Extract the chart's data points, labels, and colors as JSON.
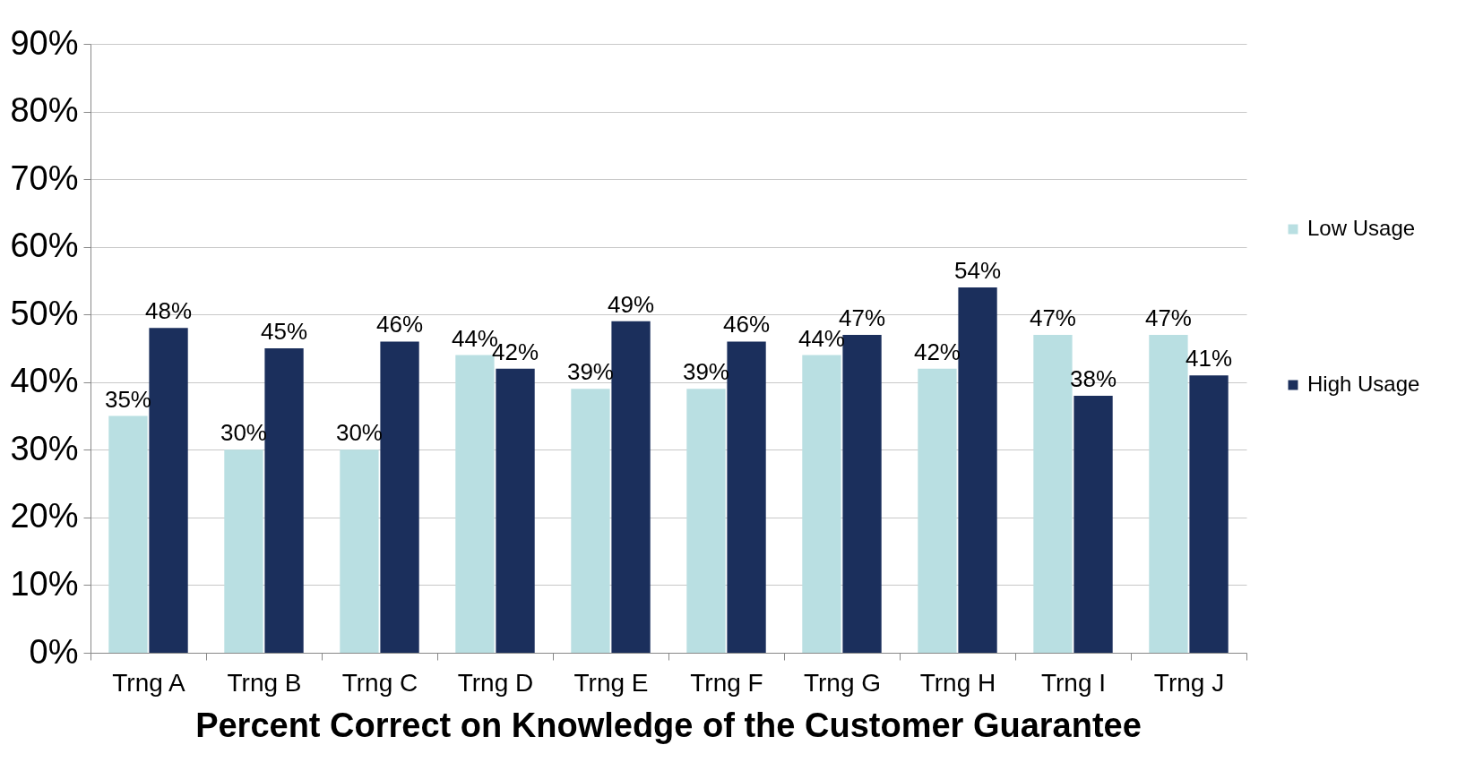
{
  "chart_data": {
    "type": "bar",
    "title": "Percent Correct on Knowledge of the Customer Guarantee",
    "categories": [
      "Trng A",
      "Trng B",
      "Trng C",
      "Trng D",
      "Trng E",
      "Trng F",
      "Trng G",
      "Trng H",
      "Trng I",
      "Trng J"
    ],
    "series": [
      {
        "name": "Low Usage",
        "color": "#b9dfe2",
        "values": [
          35,
          30,
          30,
          44,
          39,
          39,
          44,
          42,
          47,
          47
        ],
        "value_labels": [
          "35%",
          "30%",
          "30%",
          "44%",
          "39%",
          "39%",
          "44%",
          "42%",
          "47%",
          "47%"
        ]
      },
      {
        "name": "High Usage",
        "color": "#1b2f5c",
        "values": [
          48,
          45,
          46,
          42,
          49,
          46,
          47,
          54,
          38,
          41
        ],
        "value_labels": [
          "48%",
          "45%",
          "46%",
          "42%",
          "49%",
          "46%",
          "47%",
          "54%",
          "38%",
          "41%"
        ]
      }
    ],
    "ylim": [
      0,
      90
    ],
    "yticks": [
      {
        "value": 0,
        "label": "0%"
      },
      {
        "value": 10,
        "label": "10%"
      },
      {
        "value": 20,
        "label": "20%"
      },
      {
        "value": 30,
        "label": "30%"
      },
      {
        "value": 40,
        "label": "40%"
      },
      {
        "value": 50,
        "label": "50%"
      },
      {
        "value": 60,
        "label": "60%"
      },
      {
        "value": 70,
        "label": "70%"
      },
      {
        "value": 80,
        "label": "80%"
      },
      {
        "value": 90,
        "label": "90%"
      }
    ],
    "grid": "y",
    "legend": "right"
  }
}
